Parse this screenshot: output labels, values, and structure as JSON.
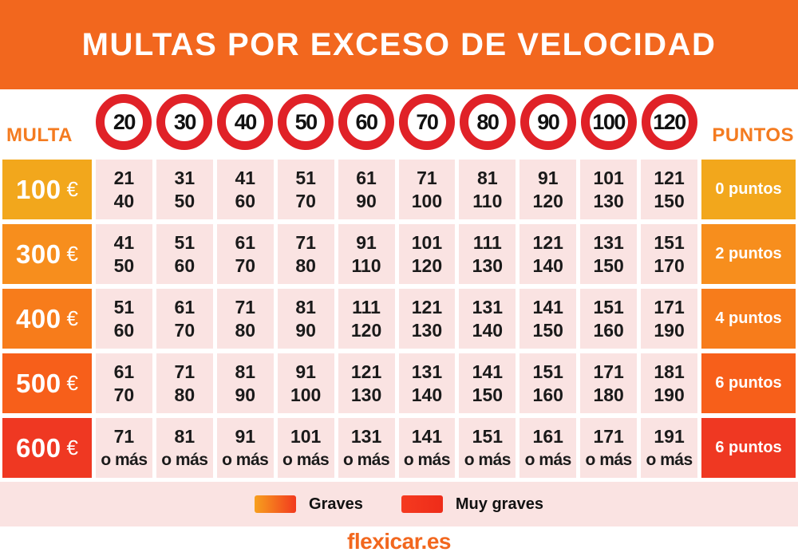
{
  "title": "MULTAS POR EXCESO DE VELOCIDAD",
  "corner_labels": {
    "left": "MULTA",
    "right": "PUNTOS"
  },
  "chart_data": {
    "type": "table",
    "title": "MULTAS POR EXCESO DE VELOCIDAD",
    "column_header_signs_kmh": [
      "20",
      "30",
      "40",
      "50",
      "60",
      "70",
      "80",
      "90",
      "100",
      "120"
    ],
    "row_header_label": "MULTA",
    "points_header_label": "PUNTOS",
    "rows": [
      {
        "fine": "100",
        "currency": "€",
        "points_label": "0 puntos",
        "severity": "Graves",
        "color": "#F2A71C",
        "speed_ranges": [
          [
            "21",
            "40"
          ],
          [
            "31",
            "50"
          ],
          [
            "41",
            "60"
          ],
          [
            "51",
            "70"
          ],
          [
            "61",
            "90"
          ],
          [
            "71",
            "100"
          ],
          [
            "81",
            "110"
          ],
          [
            "91",
            "120"
          ],
          [
            "101",
            "130"
          ],
          [
            "121",
            "150"
          ]
        ]
      },
      {
        "fine": "300",
        "currency": "€",
        "points_label": "2 puntos",
        "severity": "Graves",
        "color": "#F78E1D",
        "speed_ranges": [
          [
            "41",
            "50"
          ],
          [
            "51",
            "60"
          ],
          [
            "61",
            "70"
          ],
          [
            "71",
            "80"
          ],
          [
            "91",
            "110"
          ],
          [
            "101",
            "120"
          ],
          [
            "111",
            "130"
          ],
          [
            "121",
            "140"
          ],
          [
            "131",
            "150"
          ],
          [
            "151",
            "170"
          ]
        ]
      },
      {
        "fine": "400",
        "currency": "€",
        "points_label": "4 puntos",
        "severity": "Graves",
        "color": "#F77C1B",
        "speed_ranges": [
          [
            "51",
            "60"
          ],
          [
            "61",
            "70"
          ],
          [
            "71",
            "80"
          ],
          [
            "81",
            "90"
          ],
          [
            "111",
            "120"
          ],
          [
            "121",
            "130"
          ],
          [
            "131",
            "140"
          ],
          [
            "141",
            "150"
          ],
          [
            "151",
            "160"
          ],
          [
            "171",
            "190"
          ]
        ]
      },
      {
        "fine": "500",
        "currency": "€",
        "points_label": "6 puntos",
        "severity": "Graves",
        "color": "#F75F1A",
        "speed_ranges": [
          [
            "61",
            "70"
          ],
          [
            "71",
            "80"
          ],
          [
            "81",
            "90"
          ],
          [
            "91",
            "100"
          ],
          [
            "121",
            "130"
          ],
          [
            "131",
            "140"
          ],
          [
            "141",
            "150"
          ],
          [
            "151",
            "160"
          ],
          [
            "171",
            "180"
          ],
          [
            "181",
            "190"
          ]
        ]
      },
      {
        "fine": "600",
        "currency": "€",
        "points_label": "6 puntos",
        "severity": "Muy graves",
        "color": "#EF3822",
        "speed_ranges": [
          [
            "71",
            "o más"
          ],
          [
            "81",
            "o más"
          ],
          [
            "91",
            "o más"
          ],
          [
            "101",
            "o más"
          ],
          [
            "131",
            "o más"
          ],
          [
            "141",
            "o más"
          ],
          [
            "151",
            "o más"
          ],
          [
            "161",
            "o más"
          ],
          [
            "171",
            "o más"
          ],
          [
            "191",
            "o más"
          ]
        ]
      }
    ]
  },
  "legend": {
    "items": [
      {
        "label": "Graves",
        "swatch": "gradient"
      },
      {
        "label": "Muy graves",
        "swatch": "solid"
      }
    ]
  },
  "footer": {
    "brand": "flexicar.es"
  },
  "colors": {
    "page_bg": "#FFFFFF",
    "header_orange": "#F2671E",
    "corner_label": "#F47B20",
    "sign_ring": "#E02127",
    "cell_pink": "#FAE3E2",
    "cell_text": "#1A1A1A",
    "legend_gradient_start": "#F7A01E",
    "legend_gradient_end": "#F23A1E",
    "legend_red": "#F53A20",
    "legend_red2": "#EE2C19",
    "brand_orange": "#F2671E"
  }
}
